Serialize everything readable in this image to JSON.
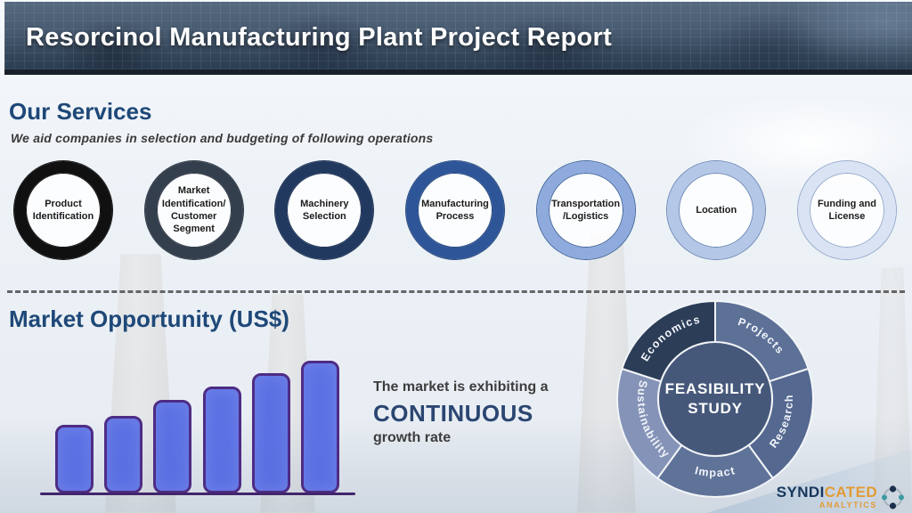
{
  "header": {
    "title": "Resorcinol Manufacturing Plant Project Report"
  },
  "services": {
    "heading": "Our Services",
    "subtitle": "We aid companies in selection and budgeting of following operations",
    "items": [
      {
        "label": "Product Identification",
        "ring_color": "#101010",
        "edge_color": "#101010"
      },
      {
        "label": "Market Identification/ Customer Segment",
        "ring_color": "#333f4d",
        "edge_color": "#2b3642"
      },
      {
        "label": "Machinery Selection",
        "ring_color": "#22395f",
        "edge_color": "#1d3154"
      },
      {
        "label": "Manufacturing Process",
        "ring_color": "#2e5597",
        "edge_color": "#27497f"
      },
      {
        "label": "Transportation /Logistics",
        "ring_color": "#8faadc",
        "edge_color": "#41659c"
      },
      {
        "label": "Location",
        "ring_color": "#b4c7e7",
        "edge_color": "#6c88b5"
      },
      {
        "label": "Funding and License",
        "ring_color": "#dae3f3",
        "edge_color": "#93a9cc"
      }
    ]
  },
  "market": {
    "heading": "Market Opportunity (US$)",
    "note_line1": "The market is exhibiting a",
    "note_emphasis": "CONTINUOUS",
    "note_line2": "growth rate"
  },
  "chart_data": [
    {
      "type": "bar",
      "title": "Market Opportunity (US$)",
      "categories": [
        "",
        "",
        "",
        "",
        "",
        ""
      ],
      "values": [
        77,
        87,
        105,
        120,
        135,
        149
      ],
      "value_note": "no axis or data labels shown; values are relative bar heights (px), steadily increasing",
      "trend": "increasing",
      "bar_fill": "rgba(77,100,226,0.90)",
      "bar_border": "#4e2c85",
      "baseline_color": "#42246b",
      "grid": "off",
      "legend": "none"
    },
    {
      "type": "pie",
      "subtype": "donut",
      "title": "FEASIBILITY STUDY",
      "center_label_line1": "FEASIBILITY",
      "center_label_line2": "STUDY",
      "center_color": "#46587a",
      "segments": [
        {
          "label": "Projects",
          "value": 72,
          "color": "#5d7096"
        },
        {
          "label": "Research",
          "value": 72,
          "color": "#546890"
        },
        {
          "label": "Impact",
          "value": 72,
          "color": "#5f7298"
        },
        {
          "label": "Sustainability",
          "value": 72,
          "color": "#8493b7"
        },
        {
          "label": "Economics",
          "value": 72,
          "color": "#2c3d58"
        }
      ],
      "legend": "labels-on-slices"
    }
  ],
  "logo": {
    "name_part1": "SYNDI",
    "name_part2": "CATED",
    "subtext": "ANALYTICS",
    "color_primary": "#16365c",
    "color_accent": "#e39b35",
    "icon": "dots-ring-icon",
    "icon_dot_dark": "#1b2f4a",
    "icon_dot_teal": "#3d9aa1"
  }
}
